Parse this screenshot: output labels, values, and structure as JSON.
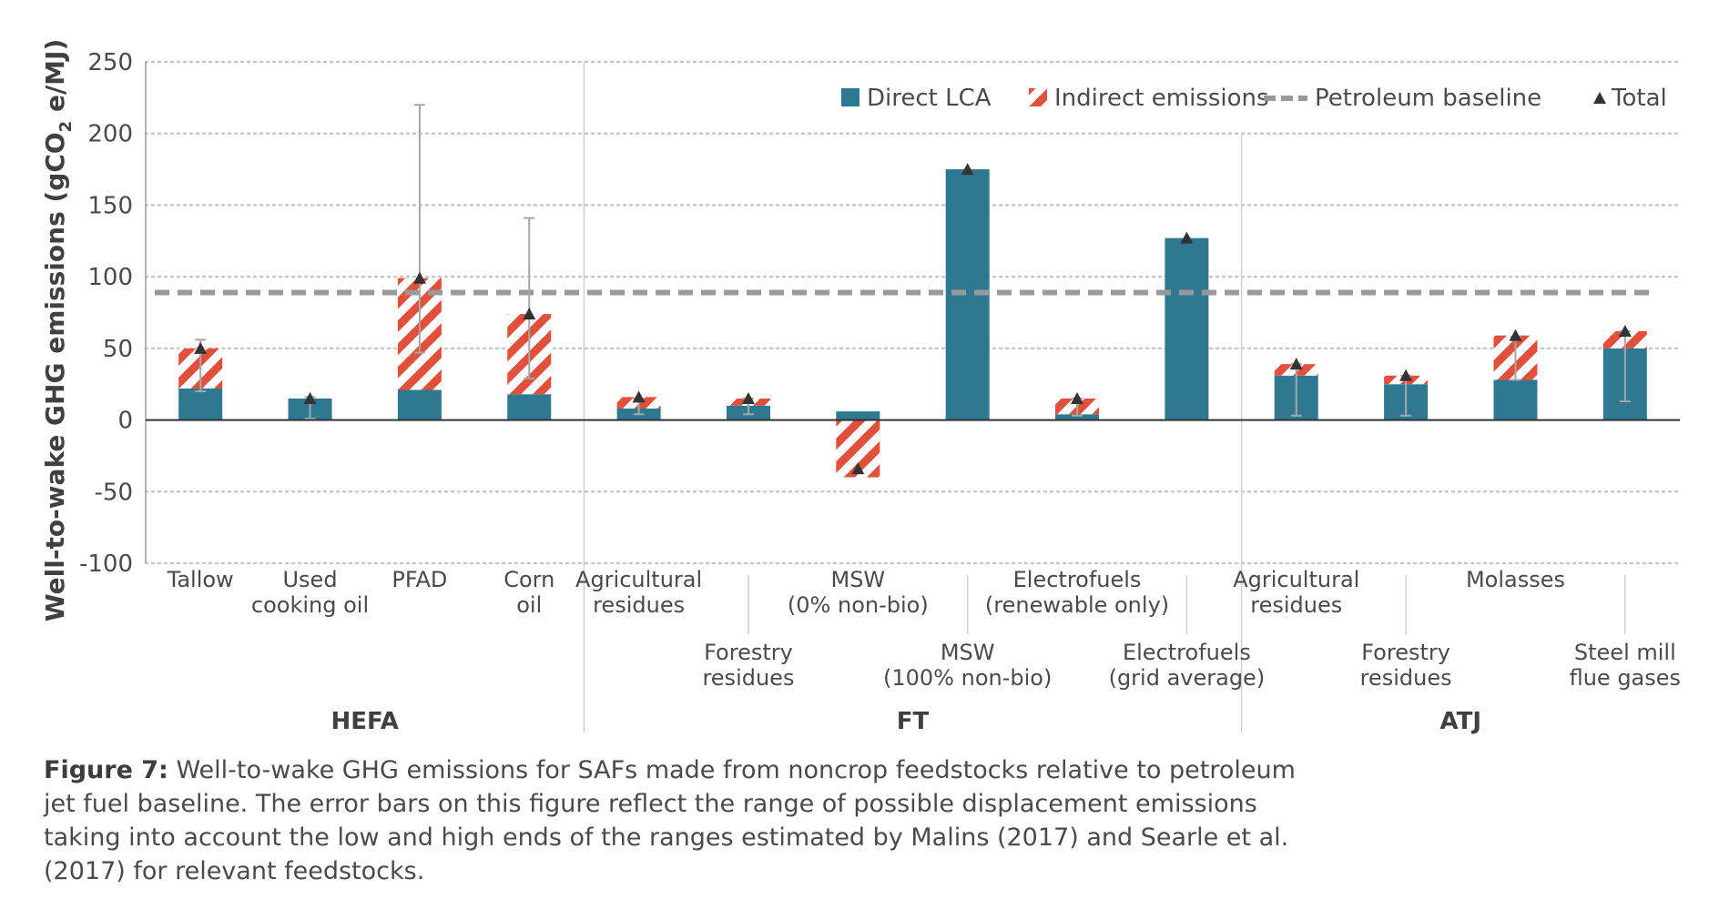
{
  "chart_data": {
    "type": "bar",
    "stacked": true,
    "title": "",
    "ylabel": "Well-to-wake GHG emissions (gCO₂ e/MJ)",
    "ylabel_parts": {
      "pre": "Well-to-wake GHG emissions (gCO",
      "sub": "2",
      "post": " e/MJ)"
    },
    "ylim": [
      -100,
      250
    ],
    "yticks": [
      -100,
      -50,
      0,
      50,
      100,
      150,
      200,
      250
    ],
    "grid": true,
    "legend_position": "top-right",
    "legend": [
      "Direct LCA",
      "Indirect emissions",
      "Petroleum baseline",
      "Total"
    ],
    "petroleum_baseline": 89,
    "groups": [
      {
        "name": "HEFA",
        "start": 0,
        "end": 3
      },
      {
        "name": "FT",
        "start": 4,
        "end": 9
      },
      {
        "name": "ATJ",
        "start": 10,
        "end": 13
      }
    ],
    "categories": [
      {
        "lines": [
          "Tallow"
        ],
        "row": 1
      },
      {
        "lines": [
          "Used",
          "cooking oil"
        ],
        "row": 1
      },
      {
        "lines": [
          "PFAD"
        ],
        "row": 1
      },
      {
        "lines": [
          "Corn",
          "oil"
        ],
        "row": 1
      },
      {
        "lines": [
          "Agricultural",
          "residues"
        ],
        "row": 1
      },
      {
        "lines": [
          "Forestry",
          "residues"
        ],
        "row": 2
      },
      {
        "lines": [
          "MSW",
          "(0% non-bio)"
        ],
        "row": 1
      },
      {
        "lines": [
          "MSW",
          "(100% non-bio)"
        ],
        "row": 2
      },
      {
        "lines": [
          "Electrofuels",
          "(renewable only)"
        ],
        "row": 1
      },
      {
        "lines": [
          "Electrofuels",
          "(grid average)"
        ],
        "row": 2
      },
      {
        "lines": [
          "Agricultural",
          "residues"
        ],
        "row": 1
      },
      {
        "lines": [
          "Forestry",
          "residues"
        ],
        "row": 2
      },
      {
        "lines": [
          "Molasses"
        ],
        "row": 1
      },
      {
        "lines": [
          "Steel mill",
          "flue gases"
        ],
        "row": 2
      }
    ],
    "series": [
      {
        "name": "Direct LCA",
        "values": [
          22,
          15,
          21,
          18,
          8,
          10,
          6,
          175,
          4,
          127,
          31,
          25,
          28,
          50
        ]
      },
      {
        "name": "Indirect emissions",
        "values": [
          28,
          0,
          78,
          56,
          8,
          5,
          -40,
          0,
          11,
          0,
          8,
          6,
          31,
          12
        ]
      }
    ],
    "totals": [
      50,
      15,
      99,
      74,
      16,
      15,
      -34,
      175,
      15,
      127,
      39,
      31,
      59,
      62
    ],
    "error_bars": [
      [
        20,
        56
      ],
      [
        1,
        16
      ],
      [
        47,
        220
      ],
      [
        29,
        141
      ],
      [
        4,
        15
      ],
      [
        4,
        15
      ],
      null,
      null,
      [
        3,
        15
      ],
      null,
      [
        3,
        39
      ],
      [
        3,
        31
      ],
      [
        28,
        58
      ],
      [
        13,
        62
      ]
    ],
    "colors": {
      "direct": "#2e7891",
      "indirect": "#e0503a",
      "baseline": "#999999",
      "total": "#333333"
    }
  },
  "caption": {
    "label": "Figure 7:",
    "text": " Well-to-wake GHG emissions for SAFs made from noncrop feedstocks relative to petroleum jet fuel baseline. The error bars on this figure reflect the range of possible displacement emissions taking into account the low and high ends of the ranges estimated by Malins (2017) and Searle et al. (2017) for relevant feedstocks."
  }
}
